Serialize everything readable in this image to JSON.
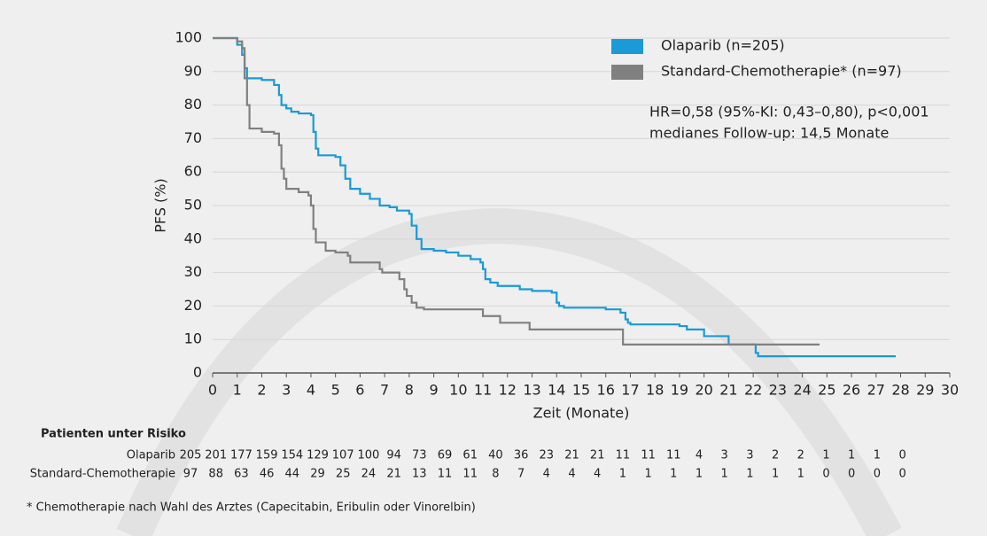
{
  "chart_data": {
    "type": "step",
    "y_label": "PFS (%)",
    "x_label": "Zeit (Monate)",
    "xlim": [
      0,
      30
    ],
    "ylim": [
      0,
      100
    ],
    "xticks": [
      0,
      1,
      2,
      3,
      4,
      5,
      6,
      7,
      8,
      9,
      10,
      11,
      12,
      13,
      14,
      15,
      16,
      17,
      18,
      19,
      20,
      21,
      22,
      23,
      24,
      25,
      26,
      27,
      28,
      29,
      30
    ],
    "yticks": [
      0,
      10,
      20,
      30,
      40,
      50,
      60,
      70,
      80,
      90,
      100
    ],
    "grid": true,
    "legend": "top-right",
    "series": [
      {
        "name": "Olaparib (n=205)",
        "color": "#1a9ad6",
        "x": [
          0,
          1,
          1.2,
          1.3,
          1.4,
          2,
          2.5,
          2.7,
          2.8,
          3,
          3.2,
          3.5,
          4,
          4.1,
          4.2,
          4.3,
          5,
          5.2,
          5.4,
          5.6,
          6,
          6.4,
          6.8,
          7.2,
          7.5,
          8,
          8.1,
          8.3,
          8.5,
          9,
          9.5,
          10,
          10.5,
          10.9,
          11,
          11.1,
          11.3,
          11.6,
          12.5,
          13,
          13.8,
          14,
          14.1,
          14.3,
          16,
          16.6,
          16.8,
          16.9,
          17,
          19,
          19.3,
          20,
          21,
          22.1,
          22.2,
          27.8
        ],
        "values": [
          100,
          98,
          95,
          91,
          88,
          87.5,
          86,
          83,
          80,
          79,
          78,
          77.5,
          77,
          72,
          67,
          65,
          64.5,
          62,
          58,
          55,
          53.5,
          52,
          50,
          49.5,
          48.5,
          47.5,
          44,
          40,
          37,
          36.5,
          36,
          35,
          34,
          33,
          31,
          28,
          27,
          26,
          25,
          24.5,
          24,
          21,
          20,
          19.5,
          19,
          18,
          16,
          15,
          14.5,
          14,
          13,
          11,
          8.5,
          6,
          5,
          5
        ]
      },
      {
        "name": "Standard-Chemotherapie* (n=97)",
        "color": "#808080",
        "x": [
          0,
          1,
          1.2,
          1.3,
          1.4,
          1.5,
          2,
          2.5,
          2.7,
          2.8,
          2.9,
          3,
          3.5,
          3.9,
          4,
          4.1,
          4.2,
          4.6,
          5,
          5.5,
          5.6,
          6.8,
          6.9,
          7.6,
          7.8,
          7.9,
          8.1,
          8.3,
          8.6,
          11,
          11.7,
          12.9,
          16.6,
          16.7,
          24.7
        ],
        "values": [
          100,
          99,
          97,
          88,
          80,
          73,
          72,
          71.5,
          68,
          61,
          58,
          55,
          54,
          53,
          50,
          43,
          39,
          36.5,
          36,
          35,
          33,
          31,
          30,
          28,
          25,
          23,
          21,
          19.5,
          19,
          17,
          15,
          13,
          13,
          8.5,
          8.5
        ]
      }
    ],
    "annotations": [
      "HR=0,58 (95%-KI: 0,43–0,80), p<0,001",
      "medianes Follow-up: 14,5 Monate"
    ],
    "risk_table": {
      "title": "Patienten unter Risiko",
      "rows": [
        {
          "name": "Olaparib",
          "values": [
            205,
            201,
            177,
            159,
            154,
            129,
            107,
            100,
            94,
            73,
            69,
            61,
            40,
            36,
            23,
            21,
            21,
            11,
            11,
            11,
            4,
            3,
            3,
            2,
            2,
            1,
            1,
            1,
            0
          ]
        },
        {
          "name": "Standard-Chemotherapie",
          "values": [
            97,
            88,
            63,
            46,
            44,
            29,
            25,
            24,
            21,
            13,
            11,
            11,
            8,
            7,
            4,
            4,
            4,
            1,
            1,
            1,
            1,
            1,
            1,
            1,
            1,
            0,
            0,
            0,
            0
          ]
        }
      ]
    },
    "footnote": "* Chemotherapie nach Wahl des Arztes (Capecitabin, Eribulin oder Vinorelbin)"
  }
}
